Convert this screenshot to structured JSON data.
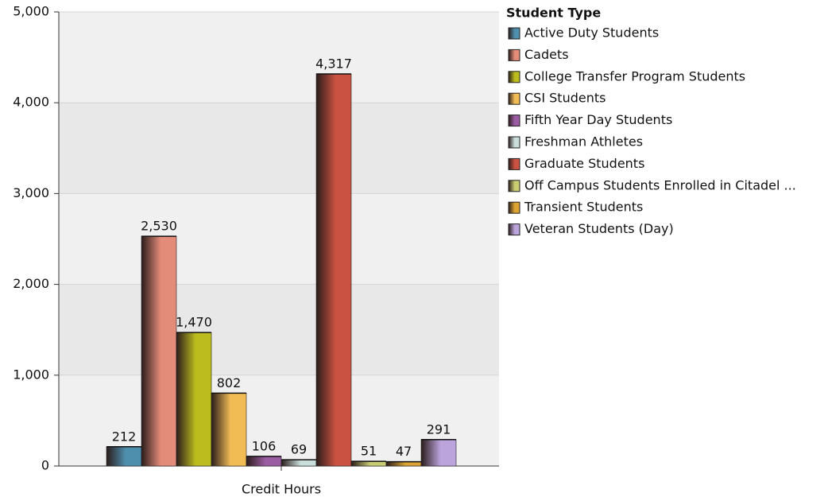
{
  "chart_data": {
    "type": "bar",
    "categories": [
      "Credit Hours"
    ],
    "legend_title": "Student Type",
    "legend": "right",
    "grid": true,
    "ylim": [
      0,
      5000
    ],
    "yticks": [
      0,
      {
        "value": 1000,
        "label": "1,000"
      },
      {
        "value": 2000,
        "label": "2,000"
      },
      {
        "value": 3000,
        "label": "3,000"
      },
      {
        "value": 4000,
        "label": "4,000"
      },
      {
        "value": 5000,
        "label": "5,000"
      }
    ],
    "series": [
      {
        "name": "Active Duty Students",
        "color": "#4f8fae",
        "values": [
          212
        ]
      },
      {
        "name": "Cadets",
        "color": "#e48c7a",
        "values": [
          2530
        ],
        "value_labels": [
          "2,530"
        ]
      },
      {
        "name": "College Transfer Program Students",
        "color": "#bcbc1e",
        "values": [
          1470
        ],
        "value_labels": [
          "1,470"
        ]
      },
      {
        "name": "CSI Students",
        "color": "#f2bc55",
        "values": [
          802
        ]
      },
      {
        "name": "Fifth Year Day Students",
        "color": "#9c5ca4",
        "values": [
          106
        ]
      },
      {
        "name": "Freshman Athletes",
        "color": "#c9dedb",
        "values": [
          69
        ]
      },
      {
        "name": "Graduate Students",
        "color": "#c95242",
        "values": [
          4317
        ],
        "value_labels": [
          "4,317"
        ]
      },
      {
        "name": "Off Campus Students Enrolled in Citadel ...",
        "color": "#c9cd72",
        "values": [
          51
        ]
      },
      {
        "name": "Transient Students",
        "color": "#dba332",
        "values": [
          47
        ]
      },
      {
        "name": "Veteran Students (Day)",
        "color": "#bba3db",
        "values": [
          291
        ]
      }
    ]
  }
}
